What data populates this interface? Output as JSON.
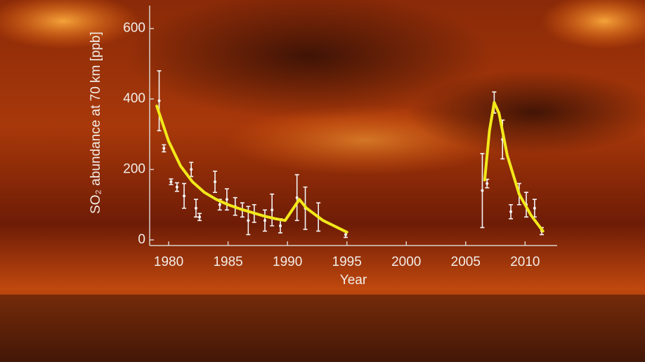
{
  "chart_data": {
    "type": "scatter",
    "x_label": "Year",
    "y_label": "SO₂ abundance at 70 km [ppb]",
    "xlim": [
      1978.4,
      2012.7
    ],
    "ylim": [
      -16,
      665
    ],
    "xticks": [
      1980,
      1985,
      1990,
      1995,
      2000,
      2005,
      2010
    ],
    "yticks": [
      0,
      200,
      400,
      600
    ],
    "points": {
      "color": "#f4f4f4",
      "x": [
        1979.2,
        1979.6,
        1980.2,
        1980.7,
        1981.3,
        1981.9,
        1982.3,
        1982.6,
        1983.9,
        1984.3,
        1984.9,
        1985.6,
        1986.2,
        1986.7,
        1987.2,
        1988.1,
        1988.7,
        1989.4,
        1990.8,
        1991.5,
        1992.6,
        1994.9,
        2006.4,
        2006.8,
        2007.4,
        2008.1,
        2008.8,
        2009.5,
        2010.1,
        2010.8,
        2011.4
      ],
      "values": [
        395,
        260,
        165,
        150,
        125,
        200,
        90,
        65,
        165,
        100,
        115,
        95,
        85,
        55,
        75,
        55,
        85,
        40,
        120,
        90,
        65,
        15,
        140,
        160,
        390,
        285,
        80,
        130,
        100,
        90,
        25
      ],
      "errors": [
        85,
        10,
        8,
        12,
        35,
        20,
        25,
        10,
        30,
        15,
        30,
        25,
        20,
        40,
        25,
        30,
        45,
        20,
        65,
        60,
        40,
        8,
        105,
        12,
        30,
        55,
        20,
        30,
        35,
        25,
        10
      ]
    },
    "fit": {
      "color": "#f2e81a",
      "x": [
        1979.0,
        1980,
        1981,
        1982,
        1983,
        1984,
        1985,
        1986,
        1987,
        1988,
        1989,
        1989.8,
        1990.5,
        1991,
        1991.6,
        1993,
        1995,
        null,
        2006.6,
        2007,
        2007.4,
        2007.8,
        2008.5,
        2009.5,
        2010.5,
        2011.5
      ],
      "values": [
        380,
        280,
        210,
        165,
        135,
        115,
        100,
        88,
        78,
        68,
        60,
        55,
        90,
        115,
        90,
        55,
        22,
        null,
        170,
        310,
        390,
        360,
        240,
        130,
        70,
        25
      ]
    }
  }
}
